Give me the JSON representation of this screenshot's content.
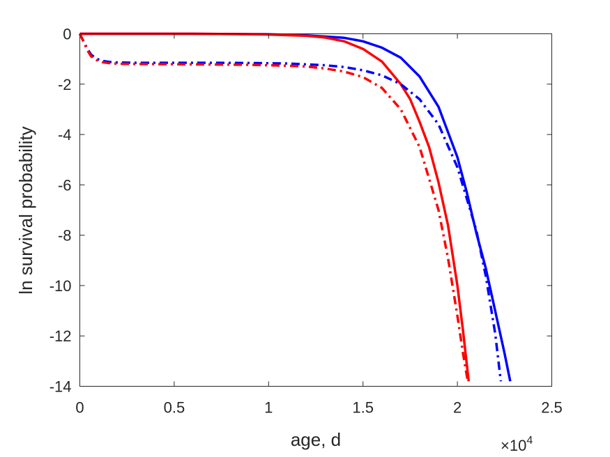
{
  "chart_data": {
    "type": "line",
    "title": "",
    "xlabel": "age, d",
    "ylabel": "ln survival probability",
    "x_exponent_label": "×10",
    "x_exponent_power": "4",
    "xlim": [
      0,
      25000
    ],
    "ylim": [
      -14,
      0
    ],
    "x_ticks": [
      0,
      5000,
      10000,
      15000,
      20000,
      25000
    ],
    "x_tick_labels": [
      "0",
      "0.5",
      "1",
      "1.5",
      "2",
      "2.5"
    ],
    "y_ticks": [
      0,
      -2,
      -4,
      -6,
      -8,
      -10,
      -12,
      -14
    ],
    "y_tick_labels": [
      "0",
      "-2",
      "-4",
      "-6",
      "-8",
      "-10",
      "-12",
      "-14"
    ],
    "grid": false,
    "legend": "none",
    "series": [
      {
        "color": "#0000ff",
        "line_style": "solid",
        "x": [
          0,
          2000,
          4000,
          6000,
          8000,
          10000,
          12000,
          14000,
          15000,
          16000,
          17000,
          18000,
          19000,
          20000,
          20500,
          21000,
          21500,
          22000,
          22500,
          22800
        ],
        "y": [
          0,
          0,
          0,
          0,
          -0.01,
          -0.02,
          -0.06,
          -0.16,
          -0.3,
          -0.55,
          -0.95,
          -1.7,
          -2.9,
          -4.9,
          -6.3,
          -7.9,
          -9.3,
          -11.0,
          -12.7,
          -13.8
        ]
      },
      {
        "color": "#ff0000",
        "line_style": "solid",
        "x": [
          0,
          2000,
          4000,
          6000,
          8000,
          10000,
          12000,
          13000,
          14000,
          15000,
          16000,
          17000,
          17500,
          18000,
          18500,
          19000,
          19500,
          20000,
          20300,
          20600
        ],
        "y": [
          0,
          0,
          0,
          0,
          -0.01,
          -0.03,
          -0.08,
          -0.15,
          -0.3,
          -0.6,
          -1.1,
          -2.0,
          -2.6,
          -3.5,
          -4.5,
          -5.9,
          -7.6,
          -10.0,
          -11.8,
          -13.8
        ]
      },
      {
        "color": "#0000ff",
        "line_style": "dashdot",
        "x": [
          0,
          200,
          400,
          600,
          900,
          1200,
          1600,
          2000,
          3000,
          5000,
          7000,
          9000,
          11000,
          13000,
          14000,
          15000,
          16000,
          17000,
          18000,
          19000,
          20000,
          21000,
          21500,
          22000,
          22300
        ],
        "y": [
          0,
          -0.3,
          -0.6,
          -0.83,
          -1.0,
          -1.08,
          -1.12,
          -1.14,
          -1.15,
          -1.15,
          -1.15,
          -1.16,
          -1.18,
          -1.25,
          -1.32,
          -1.45,
          -1.65,
          -2.0,
          -2.6,
          -3.6,
          -5.3,
          -7.8,
          -9.6,
          -11.9,
          -13.8
        ]
      },
      {
        "color": "#ff0000",
        "line_style": "dashdot",
        "x": [
          0,
          200,
          400,
          600,
          900,
          1200,
          1600,
          2000,
          3000,
          5000,
          7000,
          9000,
          11000,
          12000,
          13000,
          14000,
          15000,
          16000,
          17000,
          18000,
          19000,
          19500,
          20000,
          20300,
          20550
        ],
        "y": [
          0,
          -0.32,
          -0.65,
          -0.9,
          -1.05,
          -1.13,
          -1.17,
          -1.19,
          -1.2,
          -1.21,
          -1.22,
          -1.23,
          -1.27,
          -1.3,
          -1.38,
          -1.5,
          -1.72,
          -2.15,
          -3.0,
          -4.5,
          -7.0,
          -8.9,
          -11.2,
          -12.7,
          -13.8
        ]
      }
    ]
  }
}
